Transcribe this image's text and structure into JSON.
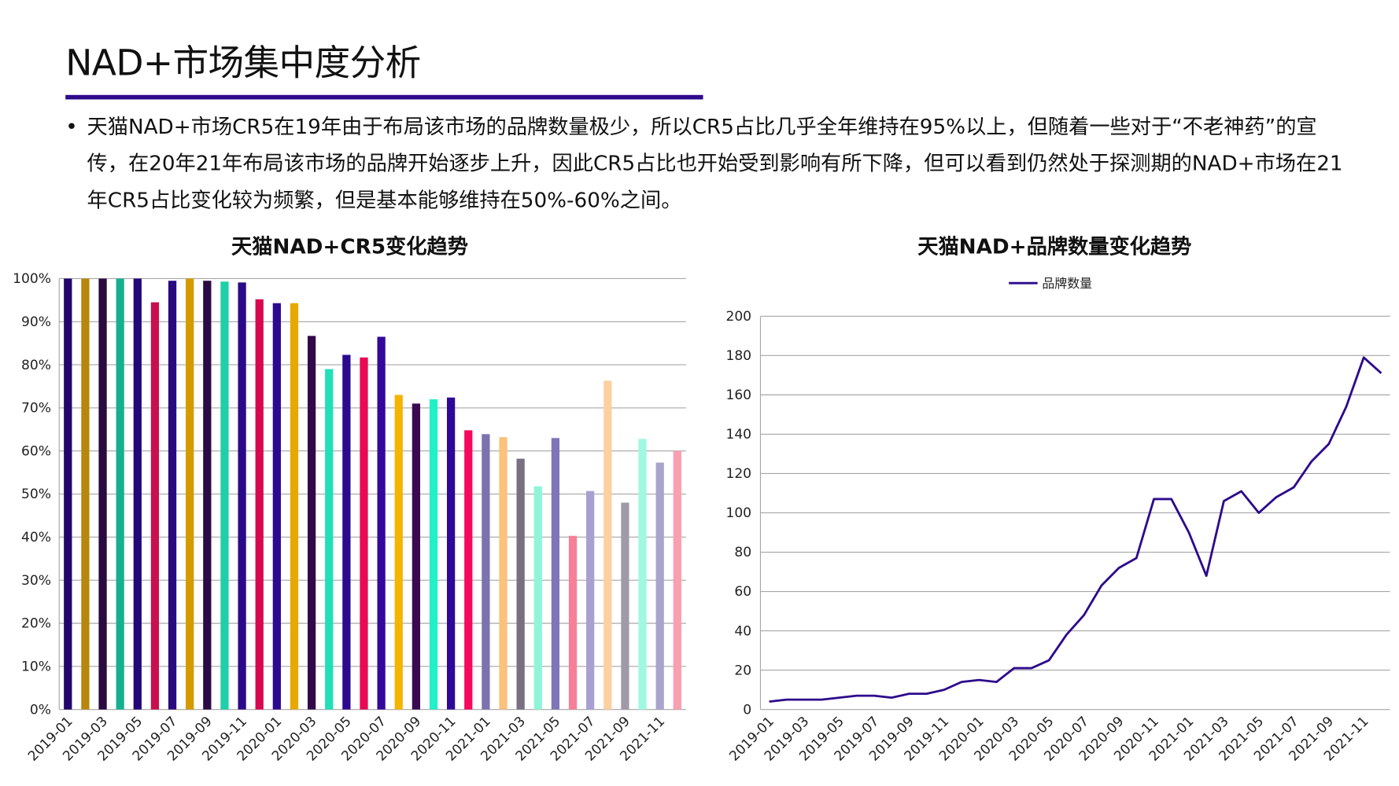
{
  "page_title": "NAD+市场集中度分析",
  "bullet": "•",
  "paragraph": "天猫NAD+市场CR5在19年由于布局该市场的品牌数量极少，所以CR5占比几乎全年维持在95%以上，但随着一些对于“不老神药”的宣传，在20年21年布局该市场的品牌开始逐步上升，因此CR5占比也开始受到影响有所下降，但可以看到仍然处于探测期的NAD+市场在21年CR5占比变化较为频繁，但是基本能够维持在50%-60%之间。",
  "colors": {
    "accent": "#2e0a8c",
    "line": "#2e0a8c",
    "grid": "#a6a6a6"
  },
  "chart_data": [
    {
      "type": "bar",
      "title": "天猫NAD+CR5变化趋势",
      "categories": [
        "2019-01",
        "2019-02",
        "2019-03",
        "2019-04",
        "2019-05",
        "2019-06",
        "2019-07",
        "2019-08",
        "2019-09",
        "2019-10",
        "2019-11",
        "2019-12",
        "2020-01",
        "2020-02",
        "2020-03",
        "2020-04",
        "2020-05",
        "2020-06",
        "2020-07",
        "2020-08",
        "2020-09",
        "2020-10",
        "2020-11",
        "2020-12",
        "2021-01",
        "2021-02",
        "2021-03",
        "2021-04",
        "2021-05",
        "2021-06",
        "2021-07",
        "2021-08",
        "2021-09",
        "2021-10",
        "2021-11",
        "2021-12"
      ],
      "x_tick_labels": [
        "2019-01",
        "2019-03",
        "2019-05",
        "2019-07",
        "2019-09",
        "2019-11",
        "2020-01",
        "2020-03",
        "2020-05",
        "2020-07",
        "2020-09",
        "2020-11",
        "2021-01",
        "2021-03",
        "2021-05",
        "2021-07",
        "2021-09",
        "2021-11"
      ],
      "values": [
        100,
        100,
        100,
        100,
        100,
        94.5,
        99.5,
        100,
        99.5,
        99.3,
        99.1,
        95.2,
        94.3,
        94.3,
        86.7,
        79.0,
        82.3,
        81.7,
        86.5,
        73.0,
        71.0,
        72.0,
        72.4,
        64.8,
        63.9,
        63.2,
        58.2,
        51.8,
        63.0,
        40.3,
        50.7,
        76.3,
        48.0,
        62.8,
        57.3,
        60.0
      ],
      "bar_colors": [
        "#22066b",
        "#b8860b",
        "#2a0a3f",
        "#16b08f",
        "#22067a",
        "#c8104f",
        "#2a0a7f",
        "#d49a00",
        "#2c0a45",
        "#1fcfa8",
        "#2a0a8a",
        "#d8084f",
        "#2c0a90",
        "#e8a800",
        "#33084a",
        "#20e0b8",
        "#2c0a90",
        "#e80a55",
        "#33089a",
        "#f5b400",
        "#3a0a50",
        "#22f0c8",
        "#2e0898",
        "#f5085e",
        "#7b72b0",
        "#fac27a",
        "#787080",
        "#90f5d8",
        "#7e76b8",
        "#f58098",
        "#a8a0d0",
        "#fcd0a0",
        "#a09aa8",
        "#a0f8e0",
        "#a8a4cc",
        "#f8a0b0"
      ],
      "y_ticks": [
        "0%",
        "10%",
        "20%",
        "30%",
        "40%",
        "50%",
        "60%",
        "70%",
        "80%",
        "90%",
        "100%"
      ],
      "ylim": [
        0,
        100
      ],
      "grid": true
    },
    {
      "type": "line",
      "title": "天猫NAD+品牌数量变化趋势",
      "legend": {
        "position": "top",
        "entries": [
          "品牌数量"
        ]
      },
      "series": [
        {
          "name": "品牌数量",
          "values": [
            4,
            5,
            5,
            5,
            6,
            7,
            7,
            6,
            8,
            8,
            10,
            14,
            15,
            14,
            21,
            21,
            25,
            38,
            48,
            63,
            72,
            77,
            107,
            107,
            90,
            68,
            106,
            111,
            100,
            108,
            113,
            126,
            135,
            154,
            179,
            171
          ]
        }
      ],
      "x_tick_labels": [
        "2019-01",
        "2019-03",
        "2019-05",
        "2019-07",
        "2019-09",
        "2019-11",
        "2020-01",
        "2020-03",
        "2020-05",
        "2020-07",
        "2020-09",
        "2020-11",
        "2021-01",
        "2021-03",
        "2021-05",
        "2021-07",
        "2021-09",
        "2021-11"
      ],
      "y_ticks": [
        "0",
        "20",
        "40",
        "60",
        "80",
        "100",
        "120",
        "140",
        "160",
        "180",
        "200"
      ],
      "ylim": [
        0,
        200
      ],
      "grid": true
    }
  ]
}
